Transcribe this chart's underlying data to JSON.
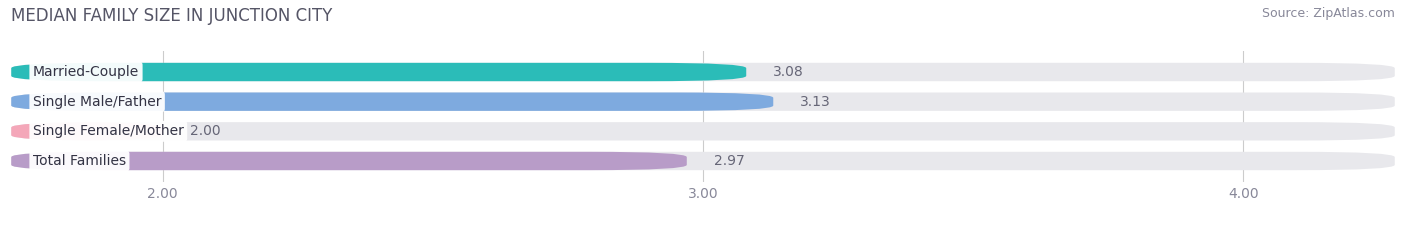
{
  "title": "MEDIAN FAMILY SIZE IN JUNCTION CITY",
  "source": "Source: ZipAtlas.com",
  "categories": [
    "Married-Couple",
    "Single Male/Father",
    "Single Female/Mother",
    "Total Families"
  ],
  "values": [
    3.08,
    3.13,
    2.0,
    2.97
  ],
  "bar_colors": [
    "#2bbcb8",
    "#7eaadf",
    "#f4a7b9",
    "#b89cc8"
  ],
  "xlim_min": 1.72,
  "xlim_max": 4.28,
  "xticks": [
    2.0,
    3.0,
    4.0
  ],
  "xtick_labels": [
    "2.00",
    "3.00",
    "4.00"
  ],
  "value_labels": [
    "3.08",
    "3.13",
    "2.00",
    "2.97"
  ],
  "bar_height": 0.62,
  "background_color": "#ffffff",
  "bar_background_color": "#e8e8ec",
  "title_fontsize": 12,
  "label_fontsize": 10,
  "value_fontsize": 10,
  "source_fontsize": 9,
  "title_color": "#555566",
  "label_color": "#333344",
  "value_color": "#666677",
  "source_color": "#888899",
  "grid_color": "#cccccc"
}
